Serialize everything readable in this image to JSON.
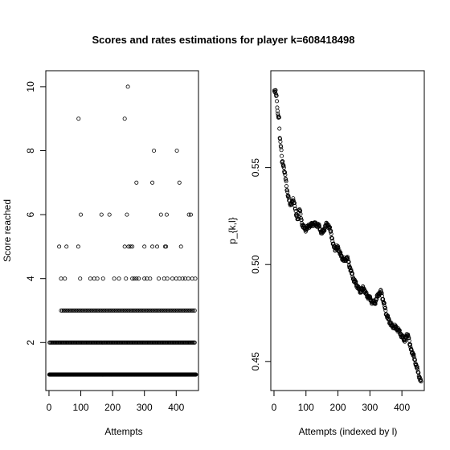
{
  "chart_data": [
    {
      "type": "scatter",
      "title": "Scores and rates estimations for player k=608418498",
      "xlabel": "Attempts",
      "ylabel": "Score reached",
      "xlim": [
        -10,
        470
      ],
      "ylim": [
        0.5,
        10.5
      ],
      "xticks": [
        "0",
        "100",
        "200",
        "300",
        "400"
      ],
      "yticks": [
        "2",
        "4",
        "6",
        "8",
        "10"
      ],
      "marker": "open-circle",
      "levels": [
        {
          "score": 1,
          "x_range": [
            1,
            462
          ],
          "step": 1
        },
        {
          "score": 2,
          "x_range": [
            2,
            460
          ],
          "step": 3
        },
        {
          "score": 3,
          "x_range": [
            38,
            460
          ],
          "step": 4
        }
      ],
      "points": [
        [
          32,
          5
        ],
        [
          55,
          5
        ],
        [
          92,
          5
        ],
        [
          38,
          4
        ],
        [
          50,
          4
        ],
        [
          98,
          4
        ],
        [
          130,
          4
        ],
        [
          142,
          4
        ],
        [
          152,
          4
        ],
        [
          170,
          4
        ],
        [
          205,
          4
        ],
        [
          220,
          4
        ],
        [
          242,
          4
        ],
        [
          262,
          4
        ],
        [
          268,
          4
        ],
        [
          275,
          4
        ],
        [
          282,
          4
        ],
        [
          300,
          4
        ],
        [
          308,
          4
        ],
        [
          318,
          4
        ],
        [
          345,
          4
        ],
        [
          362,
          4
        ],
        [
          372,
          4
        ],
        [
          388,
          4
        ],
        [
          400,
          4
        ],
        [
          410,
          4
        ],
        [
          420,
          4
        ],
        [
          428,
          4
        ],
        [
          438,
          4
        ],
        [
          450,
          4
        ],
        [
          460,
          4
        ],
        [
          93,
          9
        ],
        [
          100,
          6
        ],
        [
          165,
          6
        ],
        [
          190,
          6
        ],
        [
          245,
          6
        ],
        [
          352,
          6
        ],
        [
          370,
          6
        ],
        [
          440,
          6
        ],
        [
          446,
          6
        ],
        [
          238,
          5
        ],
        [
          250,
          5
        ],
        [
          256,
          5
        ],
        [
          262,
          5
        ],
        [
          300,
          5
        ],
        [
          325,
          5
        ],
        [
          340,
          5
        ],
        [
          365,
          5
        ],
        [
          368,
          5
        ],
        [
          415,
          5
        ],
        [
          238,
          9
        ],
        [
          248,
          10
        ],
        [
          275,
          7
        ],
        [
          325,
          7
        ],
        [
          410,
          7
        ],
        [
          330,
          8
        ],
        [
          402,
          8
        ]
      ]
    },
    {
      "type": "scatter",
      "title": "",
      "xlabel": "Attempts (indexed by l)",
      "ylabel": "p_{k,l}",
      "xlim": [
        -10,
        470
      ],
      "ylim": [
        0.435,
        0.6
      ],
      "xticks": [
        "0",
        "100",
        "200",
        "300",
        "400"
      ],
      "yticks": [
        "0.45",
        "0.50",
        "0.55"
      ],
      "marker": "open-circle",
      "anchors": [
        [
          1,
          0.5888
        ],
        [
          5,
          0.5892
        ],
        [
          8,
          0.587
        ],
        [
          12,
          0.577
        ],
        [
          16,
          0.575
        ],
        [
          18,
          0.566
        ],
        [
          22,
          0.561
        ],
        [
          25,
          0.553
        ],
        [
          30,
          0.551
        ],
        [
          35,
          0.546
        ],
        [
          40,
          0.539
        ],
        [
          45,
          0.535
        ],
        [
          50,
          0.531
        ],
        [
          60,
          0.533
        ],
        [
          65,
          0.531
        ],
        [
          70,
          0.525
        ],
        [
          75,
          0.523
        ],
        [
          80,
          0.529
        ],
        [
          85,
          0.523
        ],
        [
          90,
          0.52
        ],
        [
          98,
          0.518
        ],
        [
          110,
          0.52
        ],
        [
          125,
          0.521
        ],
        [
          140,
          0.52
        ],
        [
          150,
          0.516
        ],
        [
          165,
          0.521
        ],
        [
          170,
          0.52
        ],
        [
          178,
          0.517
        ],
        [
          185,
          0.51
        ],
        [
          192,
          0.508
        ],
        [
          200,
          0.509
        ],
        [
          208,
          0.505
        ],
        [
          215,
          0.503
        ],
        [
          222,
          0.502
        ],
        [
          228,
          0.504
        ],
        [
          235,
          0.5
        ],
        [
          240,
          0.497
        ],
        [
          250,
          0.492
        ],
        [
          260,
          0.489
        ],
        [
          270,
          0.486
        ],
        [
          280,
          0.488
        ],
        [
          290,
          0.484
        ],
        [
          298,
          0.483
        ],
        [
          305,
          0.481
        ],
        [
          315,
          0.48
        ],
        [
          322,
          0.483
        ],
        [
          328,
          0.485
        ],
        [
          335,
          0.486
        ],
        [
          345,
          0.479
        ],
        [
          352,
          0.474
        ],
        [
          360,
          0.471
        ],
        [
          370,
          0.468
        ],
        [
          378,
          0.468
        ],
        [
          390,
          0.466
        ],
        [
          400,
          0.463
        ],
        [
          408,
          0.461
        ],
        [
          415,
          0.463
        ],
        [
          420,
          0.464
        ],
        [
          425,
          0.458
        ],
        [
          432,
          0.455
        ],
        [
          440,
          0.451
        ],
        [
          448,
          0.446
        ],
        [
          455,
          0.442
        ],
        [
          460,
          0.439
        ]
      ]
    }
  ]
}
